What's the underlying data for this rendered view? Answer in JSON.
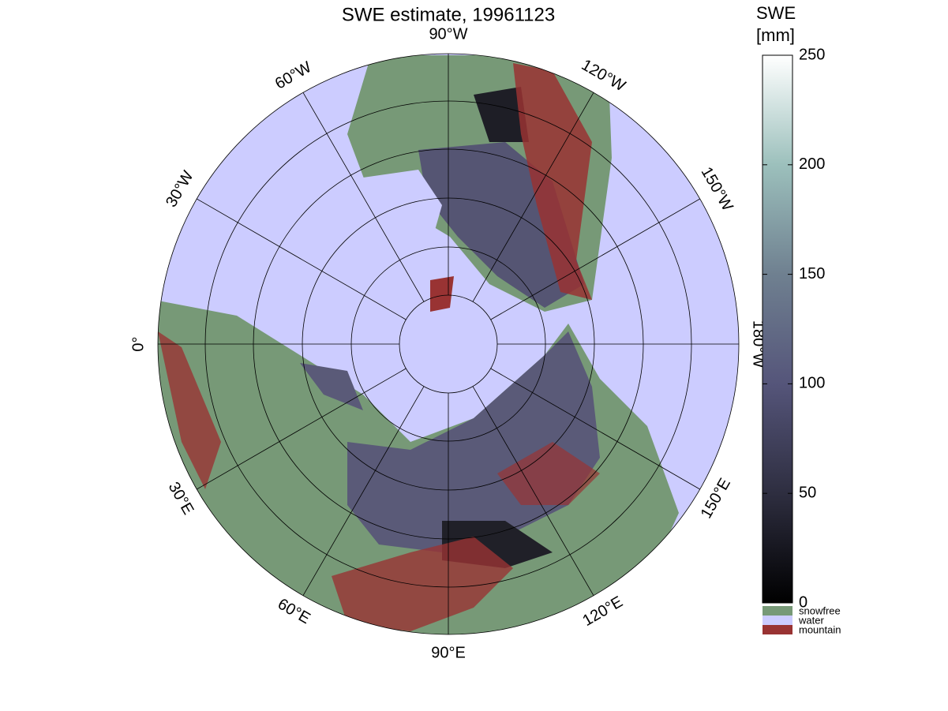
{
  "map": {
    "title": "SWE estimate, 19961123",
    "longitude_labels": [
      "90°W",
      "120°W",
      "150°W",
      "180°W",
      "150°E",
      "120°E",
      "90°E",
      "60°E",
      "30°E",
      "0°",
      "30°W",
      "60°W"
    ],
    "colorbar": {
      "label": [
        "SWE",
        "[mm]"
      ],
      "lim": [
        0,
        250
      ],
      "ticks": [
        0,
        50,
        100,
        150,
        200,
        250
      ]
    },
    "legend": [
      {
        "label": "snowfree",
        "color": "#779977"
      },
      {
        "label": "water",
        "color": "#ccccff"
      },
      {
        "label": "mountain",
        "color": "#993333"
      }
    ]
  }
}
